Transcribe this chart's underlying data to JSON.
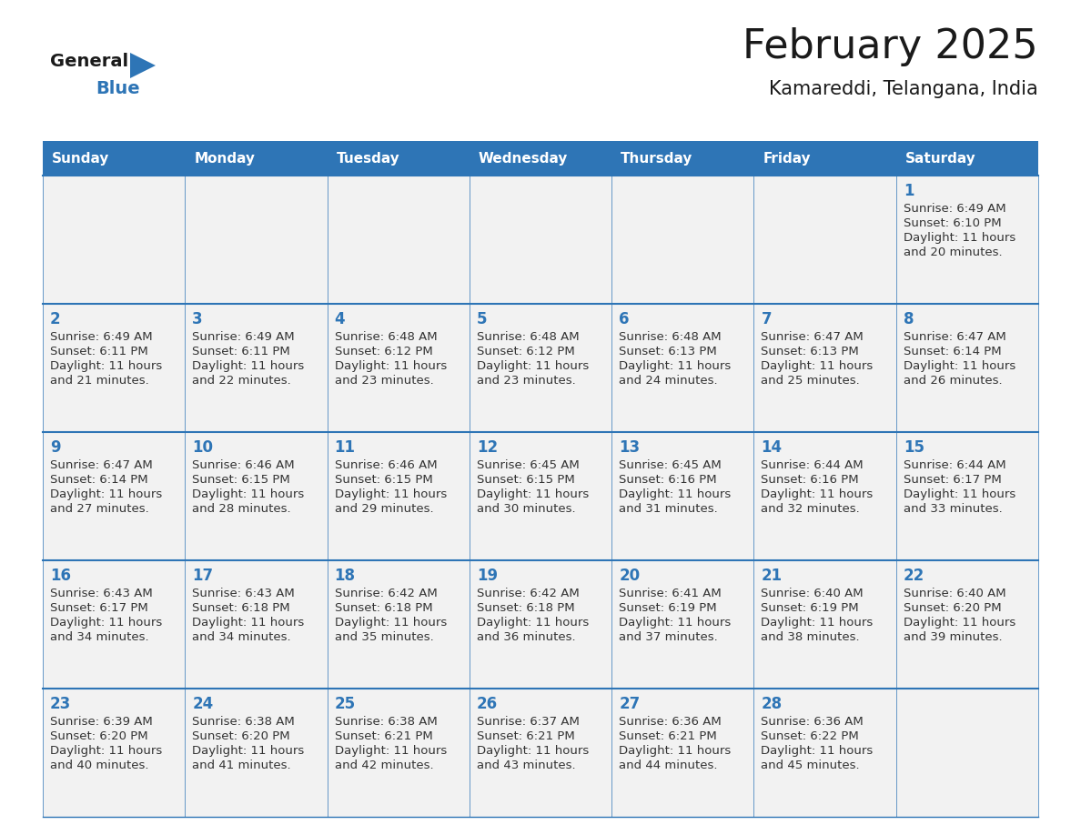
{
  "title": "February 2025",
  "subtitle": "Kamareddi, Telangana, India",
  "header_color": "#2e75b6",
  "header_text_color": "#ffffff",
  "grid_line_color": "#2e75b6",
  "day_headers": [
    "Sunday",
    "Monday",
    "Tuesday",
    "Wednesday",
    "Thursday",
    "Friday",
    "Saturday"
  ],
  "background_color": "#ffffff",
  "cell_text_color": "#333333",
  "day_number_color": "#2e75b6",
  "cell_bg_color": "#f2f2f2",
  "calendar_data": [
    [
      {
        "day": null,
        "sunrise": null,
        "sunset": null,
        "daylight": null
      },
      {
        "day": null,
        "sunrise": null,
        "sunset": null,
        "daylight": null
      },
      {
        "day": null,
        "sunrise": null,
        "sunset": null,
        "daylight": null
      },
      {
        "day": null,
        "sunrise": null,
        "sunset": null,
        "daylight": null
      },
      {
        "day": null,
        "sunrise": null,
        "sunset": null,
        "daylight": null
      },
      {
        "day": null,
        "sunrise": null,
        "sunset": null,
        "daylight": null
      },
      {
        "day": 1,
        "sunrise": "6:49 AM",
        "sunset": "6:10 PM",
        "daylight": "11 hours and 20 minutes."
      }
    ],
    [
      {
        "day": 2,
        "sunrise": "6:49 AM",
        "sunset": "6:11 PM",
        "daylight": "11 hours and 21 minutes."
      },
      {
        "day": 3,
        "sunrise": "6:49 AM",
        "sunset": "6:11 PM",
        "daylight": "11 hours and 22 minutes."
      },
      {
        "day": 4,
        "sunrise": "6:48 AM",
        "sunset": "6:12 PM",
        "daylight": "11 hours and 23 minutes."
      },
      {
        "day": 5,
        "sunrise": "6:48 AM",
        "sunset": "6:12 PM",
        "daylight": "11 hours and 23 minutes."
      },
      {
        "day": 6,
        "sunrise": "6:48 AM",
        "sunset": "6:13 PM",
        "daylight": "11 hours and 24 minutes."
      },
      {
        "day": 7,
        "sunrise": "6:47 AM",
        "sunset": "6:13 PM",
        "daylight": "11 hours and 25 minutes."
      },
      {
        "day": 8,
        "sunrise": "6:47 AM",
        "sunset": "6:14 PM",
        "daylight": "11 hours and 26 minutes."
      }
    ],
    [
      {
        "day": 9,
        "sunrise": "6:47 AM",
        "sunset": "6:14 PM",
        "daylight": "11 hours and 27 minutes."
      },
      {
        "day": 10,
        "sunrise": "6:46 AM",
        "sunset": "6:15 PM",
        "daylight": "11 hours and 28 minutes."
      },
      {
        "day": 11,
        "sunrise": "6:46 AM",
        "sunset": "6:15 PM",
        "daylight": "11 hours and 29 minutes."
      },
      {
        "day": 12,
        "sunrise": "6:45 AM",
        "sunset": "6:15 PM",
        "daylight": "11 hours and 30 minutes."
      },
      {
        "day": 13,
        "sunrise": "6:45 AM",
        "sunset": "6:16 PM",
        "daylight": "11 hours and 31 minutes."
      },
      {
        "day": 14,
        "sunrise": "6:44 AM",
        "sunset": "6:16 PM",
        "daylight": "11 hours and 32 minutes."
      },
      {
        "day": 15,
        "sunrise": "6:44 AM",
        "sunset": "6:17 PM",
        "daylight": "11 hours and 33 minutes."
      }
    ],
    [
      {
        "day": 16,
        "sunrise": "6:43 AM",
        "sunset": "6:17 PM",
        "daylight": "11 hours and 34 minutes."
      },
      {
        "day": 17,
        "sunrise": "6:43 AM",
        "sunset": "6:18 PM",
        "daylight": "11 hours and 34 minutes."
      },
      {
        "day": 18,
        "sunrise": "6:42 AM",
        "sunset": "6:18 PM",
        "daylight": "11 hours and 35 minutes."
      },
      {
        "day": 19,
        "sunrise": "6:42 AM",
        "sunset": "6:18 PM",
        "daylight": "11 hours and 36 minutes."
      },
      {
        "day": 20,
        "sunrise": "6:41 AM",
        "sunset": "6:19 PM",
        "daylight": "11 hours and 37 minutes."
      },
      {
        "day": 21,
        "sunrise": "6:40 AM",
        "sunset": "6:19 PM",
        "daylight": "11 hours and 38 minutes."
      },
      {
        "day": 22,
        "sunrise": "6:40 AM",
        "sunset": "6:20 PM",
        "daylight": "11 hours and 39 minutes."
      }
    ],
    [
      {
        "day": 23,
        "sunrise": "6:39 AM",
        "sunset": "6:20 PM",
        "daylight": "11 hours and 40 minutes."
      },
      {
        "day": 24,
        "sunrise": "6:38 AM",
        "sunset": "6:20 PM",
        "daylight": "11 hours and 41 minutes."
      },
      {
        "day": 25,
        "sunrise": "6:38 AM",
        "sunset": "6:21 PM",
        "daylight": "11 hours and 42 minutes."
      },
      {
        "day": 26,
        "sunrise": "6:37 AM",
        "sunset": "6:21 PM",
        "daylight": "11 hours and 43 minutes."
      },
      {
        "day": 27,
        "sunrise": "6:36 AM",
        "sunset": "6:21 PM",
        "daylight": "11 hours and 44 minutes."
      },
      {
        "day": 28,
        "sunrise": "6:36 AM",
        "sunset": "6:22 PM",
        "daylight": "11 hours and 45 minutes."
      },
      {
        "day": null,
        "sunrise": null,
        "sunset": null,
        "daylight": null
      }
    ]
  ]
}
